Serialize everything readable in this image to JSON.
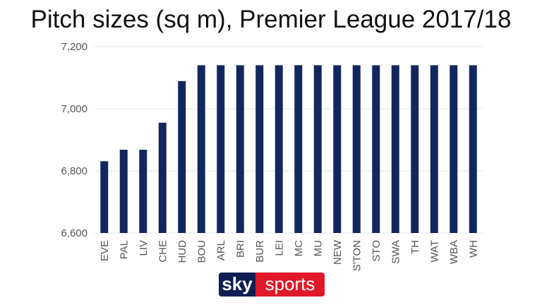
{
  "chart_data": {
    "type": "bar",
    "title": "Pitch sizes (sq m), Premier League 2017/18",
    "xlabel": "",
    "ylabel": "",
    "categories": [
      "EVE",
      "PAL",
      "LIV",
      "CHE",
      "HUD",
      "BOU",
      "ARL",
      "BRI",
      "BUR",
      "LEI",
      "MC",
      "MU",
      "NEW",
      "S'TON",
      "STO",
      "SWA",
      "TH",
      "WAT",
      "WBA",
      "WH"
    ],
    "values": [
      6831,
      6868,
      6868,
      6955,
      7089,
      7140,
      7140,
      7140,
      7140,
      7140,
      7140,
      7140,
      7140,
      7140,
      7140,
      7140,
      7140,
      7140,
      7140,
      7140
    ],
    "yticks": [
      6600,
      6800,
      7000,
      7200
    ],
    "ytick_labels": [
      "6,600",
      "6,800",
      "7,000",
      "7,200"
    ],
    "ylim": [
      6600,
      7200
    ],
    "grid": true,
    "legend": "none",
    "bar_color": "#13275f"
  },
  "branding": {
    "logo_part1": "sky",
    "logo_part2": "sports"
  },
  "colors": {
    "logo_dark": "#0f1e54",
    "logo_red": "#e1182a",
    "grid": "#e5e5e5"
  }
}
